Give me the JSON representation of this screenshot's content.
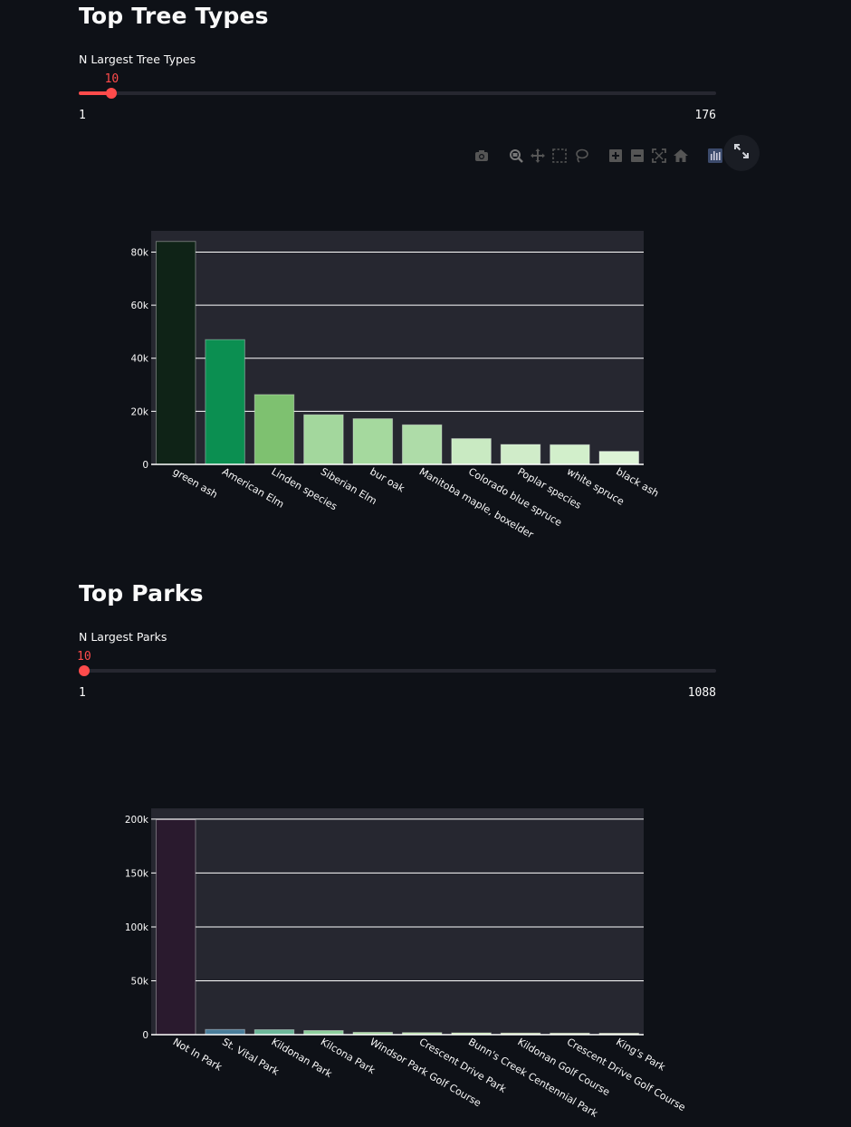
{
  "sections": [
    {
      "title": "Top Tree Types",
      "slider_label": "N Largest Tree Types",
      "slider": {
        "value": "10",
        "min": "1",
        "max": "176",
        "fraction": 0.0517
      }
    },
    {
      "title": "Top Parks",
      "slider_label": "N Largest Parks",
      "slider": {
        "value": "10",
        "min": "1",
        "max": "1088",
        "fraction": 0.0083
      }
    }
  ],
  "modebar": {
    "icons": [
      "camera-icon",
      "zoom-icon",
      "pan-icon",
      "box-select-icon",
      "lasso-select-icon",
      "zoom-in-icon",
      "zoom-out-icon",
      "autoscale-icon",
      "reset-axes-icon",
      "plotly-logo-icon"
    ],
    "fullscreen_icon": "expand-icon"
  },
  "colors": {
    "accent": "#ff4b4b",
    "background": "#0e1117",
    "plot_bg": "#262730"
  },
  "chart_data": [
    {
      "type": "bar",
      "categories": [
        "green ash",
        "American Elm",
        "Linden species",
        "Siberian Elm",
        "bur oak",
        "Manitoba maple, boxelder",
        "Colorado blue spruce",
        "Poplar species",
        "white spruce",
        "black ash"
      ],
      "values": [
        84000,
        47000,
        26300,
        18700,
        17200,
        14900,
        9700,
        7500,
        7400,
        4900
      ],
      "colors": [
        "#0f2317",
        "#0b8f51",
        "#7ec170",
        "#a3d79d",
        "#a5d99e",
        "#aedca8",
        "#c9eac2",
        "#d0ecc9",
        "#d2efcb",
        "#ddf4d6"
      ],
      "ylim": [
        0,
        88000
      ],
      "yticks": [
        0,
        20000,
        40000,
        60000,
        80000
      ],
      "ytick_labels": [
        "0",
        "20k",
        "40k",
        "60k",
        "80k"
      ],
      "grid": true
    },
    {
      "type": "bar",
      "categories": [
        "Not In Park",
        "St. Vital Park",
        "Kildonan Park",
        "Kilcona Park",
        "Windsor Park Golf Course",
        "Crescent Drive Park",
        "Bunn's Creek Centennial Park",
        "Kildonan Golf Course",
        "Crescent Drive Golf Course",
        "King's Park"
      ],
      "values": [
        199500,
        4800,
        4600,
        3800,
        2200,
        1900,
        1700,
        1500,
        1400,
        1300
      ],
      "colors": [
        "#2a1a2e",
        "#4a7e9b",
        "#6cb89a",
        "#8ecf9d",
        "#a8d9a0",
        "#b6dfa6",
        "#c4e5ae",
        "#cfeab6",
        "#d8efbd",
        "#e0f3c2"
      ],
      "ylim": [
        0,
        210000
      ],
      "yticks": [
        0,
        50000,
        100000,
        150000,
        200000
      ],
      "ytick_labels": [
        "0",
        "50k",
        "100k",
        "150k",
        "200k"
      ],
      "grid": true
    }
  ]
}
